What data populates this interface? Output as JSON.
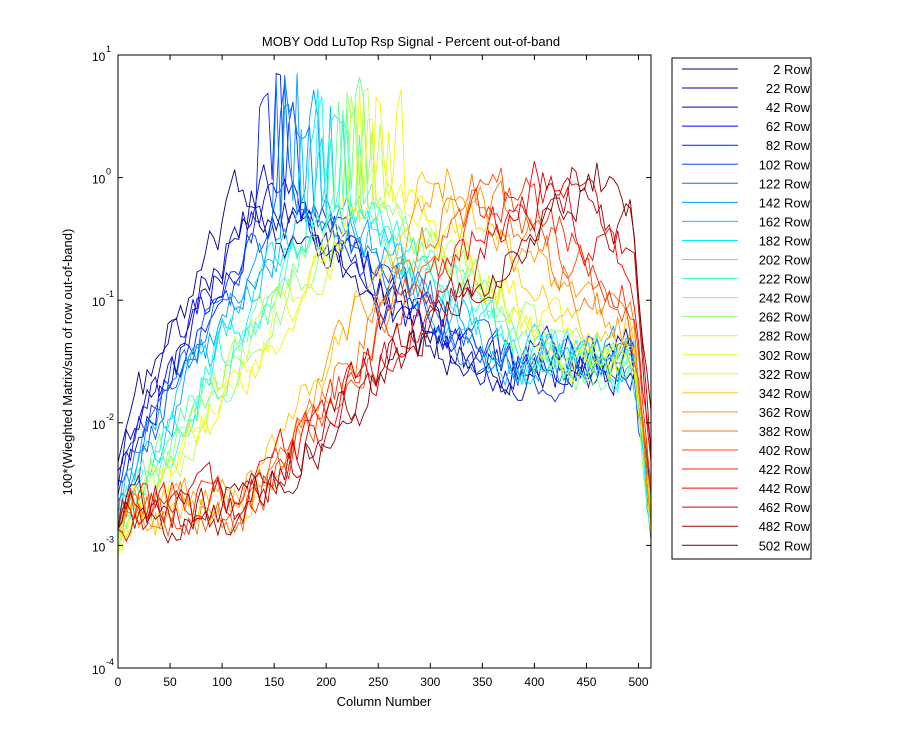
{
  "chart_data": {
    "type": "line",
    "title": "MOBY Odd LuTop Rsp Signal - Percent out-of-band",
    "xlabel": "Column Number",
    "ylabel": "100*(Wieghted Matrix/sum of row out-of-band)",
    "xlim": [
      0,
      512
    ],
    "ylim_exponent": [
      -4,
      1
    ],
    "yscale": "log",
    "x_ticks": [
      "0",
      "50",
      "100",
      "150",
      "200",
      "250",
      "300",
      "350",
      "400",
      "450",
      "500"
    ],
    "x_tick_values": [
      0,
      50,
      100,
      150,
      200,
      250,
      300,
      350,
      400,
      450,
      500
    ],
    "y_tick_base": "10",
    "y_tick_exponents": [
      "1",
      "0",
      "-1",
      "-2",
      "-3",
      "-4"
    ],
    "y_tick_values": [
      1,
      0,
      -1,
      -2,
      -3,
      -4
    ],
    "grid": false,
    "legend_position": "outside-right",
    "colormap": "jet",
    "series": [
      {
        "name": "2 Row"
      },
      {
        "name": "22 Row"
      },
      {
        "name": "42 Row"
      },
      {
        "name": "62 Row"
      },
      {
        "name": "82 Row"
      },
      {
        "name": "102 Row"
      },
      {
        "name": "122 Row"
      },
      {
        "name": "142 Row"
      },
      {
        "name": "162 Row"
      },
      {
        "name": "182 Row"
      },
      {
        "name": "202 Row"
      },
      {
        "name": "222 Row"
      },
      {
        "name": "242 Row"
      },
      {
        "name": "262 Row"
      },
      {
        "name": "282 Row"
      },
      {
        "name": "302 Row"
      },
      {
        "name": "322 Row"
      },
      {
        "name": "342 Row"
      },
      {
        "name": "362 Row"
      },
      {
        "name": "382 Row"
      },
      {
        "name": "402 Row"
      },
      {
        "name": "422 Row"
      },
      {
        "name": "442 Row"
      },
      {
        "name": "462 Row"
      },
      {
        "name": "482 Row"
      },
      {
        "name": "502 Row"
      }
    ]
  }
}
